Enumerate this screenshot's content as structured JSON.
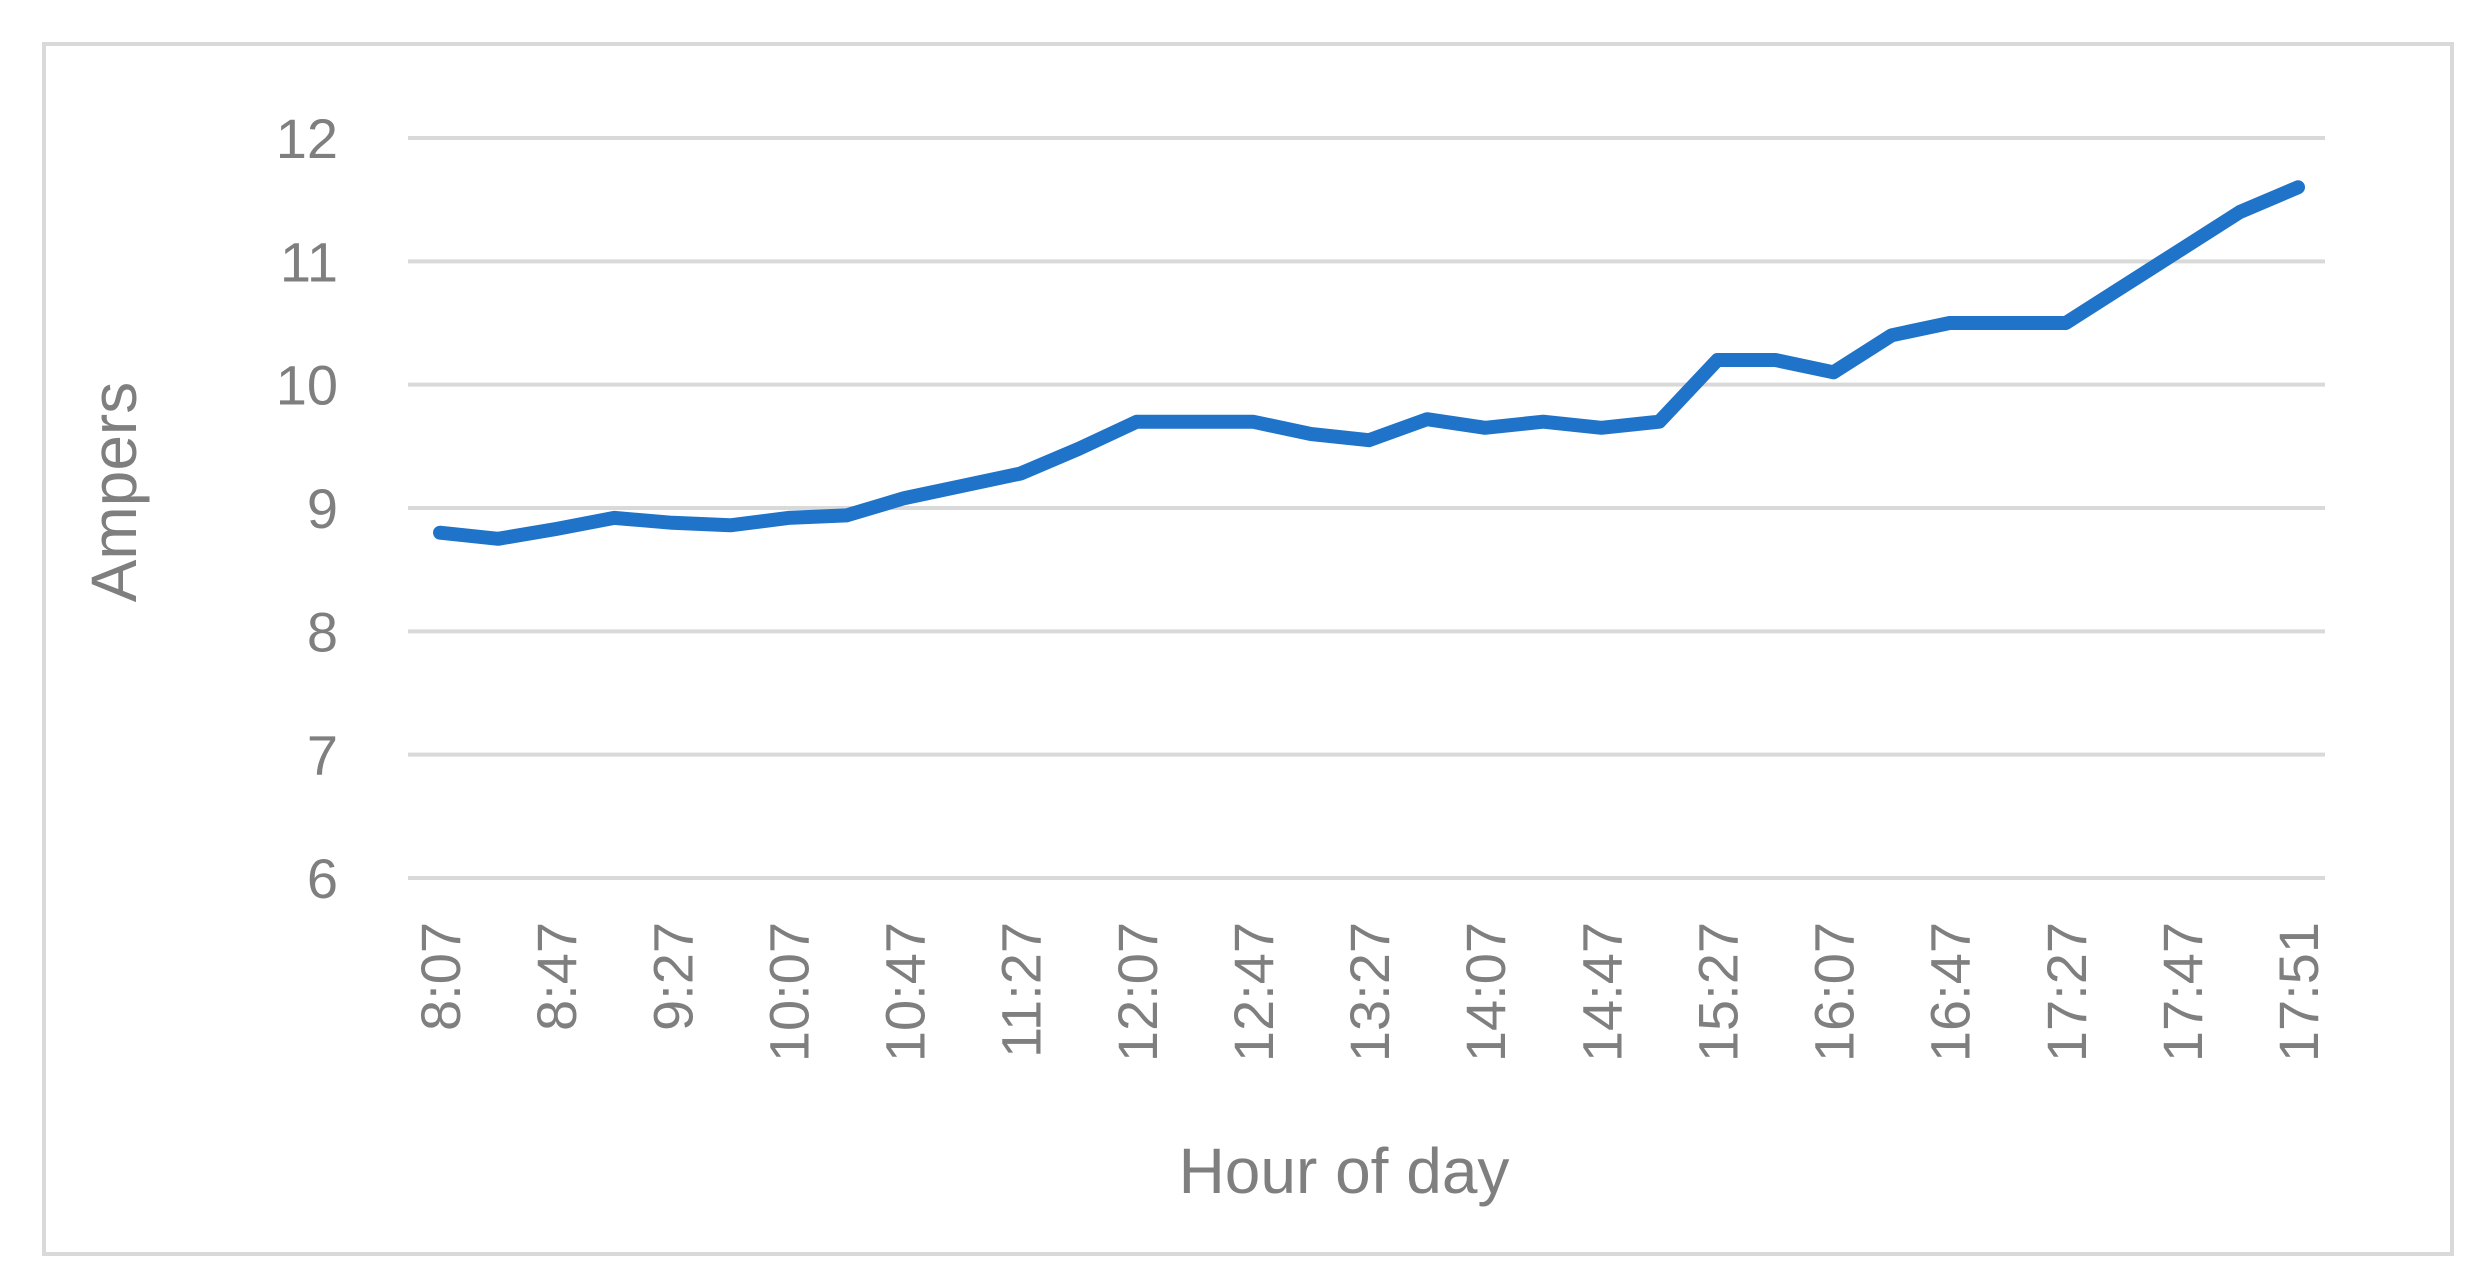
{
  "chart_data": {
    "type": "line",
    "title": "",
    "xlabel": "Hour of day",
    "ylabel": "Ampers",
    "x_tick_labels": [
      "8:07",
      "8:47",
      "9:27",
      "10:07",
      "10:47",
      "11:27",
      "12:07",
      "12:47",
      "13:27",
      "14:07",
      "14:47",
      "15:27",
      "16:07",
      "16:47",
      "17:27",
      "17:47",
      "17:51"
    ],
    "y_ticks": [
      "6",
      "7",
      "8",
      "9",
      "10",
      "11",
      "12"
    ],
    "ylim": [
      6,
      12
    ],
    "grid": true,
    "legend": "none",
    "series": [
      {
        "color": "#1f73c8",
        "values": [
          8.8,
          8.75,
          8.83,
          8.92,
          8.88,
          8.86,
          8.92,
          8.94,
          9.08,
          9.18,
          9.28,
          9.48,
          9.7,
          9.7,
          9.7,
          9.6,
          9.55,
          9.72,
          9.65,
          9.7,
          9.65,
          9.7,
          10.2,
          10.2,
          10.1,
          10.4,
          10.5,
          10.5,
          10.5,
          10.8,
          11.1,
          11.4,
          11.6
        ]
      }
    ]
  },
  "colors": {
    "line": "#1f73c8",
    "grid": "#d9d9d9",
    "text": "#7f7f7f",
    "frame": "#d9d9d9"
  }
}
